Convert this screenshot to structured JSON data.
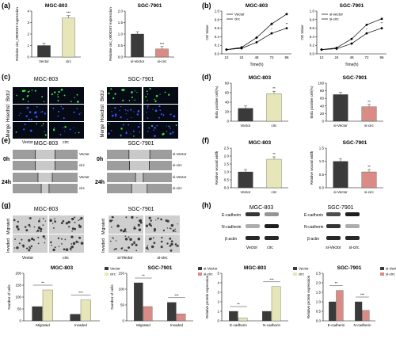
{
  "panels": {
    "a": {
      "letter": "(a)"
    },
    "b": {
      "letter": "(b)"
    },
    "c": {
      "letter": "(c)"
    },
    "d": {
      "letter": "(d)"
    },
    "e": {
      "letter": "(e)"
    },
    "f": {
      "letter": "(f)"
    },
    "g": {
      "letter": "(g)"
    },
    "h": {
      "letter": "(h)"
    }
  },
  "labels": {
    "mgc": "MGC-803",
    "sgc": "SGC-7901",
    "vector": "Vector",
    "circ": "circ",
    "si_vector": "si-Vector",
    "si_vector_lc": "si-vector",
    "si_circ": "si-circ",
    "brdu": "BrdU",
    "hoechst": "Hoechst",
    "merge": "Merge",
    "h0": "0h",
    "h24": "24h",
    "migrated": "Migrated",
    "invaded": "Invaded",
    "e_cadherin": "E-cadherin",
    "n_cadherin": "N-cadherin",
    "b_actin": "β-actin",
    "time_h": "Time(h)",
    "od": "OD Value",
    "rel_expr_a_left": "Relative circ_0000267  expression",
    "rel_expr_a_right": "Relative circ_0000267  expression",
    "brdu_positive": "Brdu positive cell(%)",
    "rel_wound": "Relative wound width",
    "num_cells": "Number of cells",
    "rel_protein": "Relative protein expression",
    "sig2": "**",
    "sig3": "***"
  },
  "chart_data": [
    {
      "panel": "a",
      "title": "MGC-803",
      "type": "bar",
      "categories": [
        "Vector",
        "circ"
      ],
      "values": [
        1.0,
        3.4
      ],
      "ylim": [
        0,
        4
      ],
      "yticks": [
        0,
        1,
        2,
        3,
        4
      ],
      "colors": [
        "#3a3a3a",
        "#e7e6b8"
      ]
    },
    {
      "panel": "a",
      "title": "SGC-7901",
      "type": "bar",
      "categories": [
        "si-Vector",
        "si-circ"
      ],
      "values": [
        1.0,
        0.35
      ],
      "ylim": [
        0,
        2
      ],
      "yticks": [
        0.0,
        0.5,
        1.0,
        1.5,
        2.0
      ],
      "colors": [
        "#3a3a3a",
        "#d98c85"
      ]
    },
    {
      "panel": "b",
      "title": "MGC-803",
      "type": "line",
      "x": [
        12,
        24,
        48,
        72,
        96
      ],
      "ylim": [
        0,
        1.0
      ],
      "yticks": [
        0.0,
        0.2,
        0.4,
        0.6,
        0.8,
        1.0
      ],
      "series": [
        {
          "name": "Vector",
          "values": [
            0.1,
            0.13,
            0.27,
            0.48,
            0.6
          ]
        },
        {
          "name": "circ",
          "values": [
            0.1,
            0.15,
            0.38,
            0.7,
            0.93
          ]
        }
      ]
    },
    {
      "panel": "b",
      "title": "SGC-7901",
      "type": "line",
      "x": [
        12,
        24,
        48,
        72,
        96
      ],
      "ylim": [
        0,
        1.0
      ],
      "yticks": [
        0.0,
        0.2,
        0.4,
        0.6,
        0.8,
        1.0
      ],
      "series": [
        {
          "name": "si-vector",
          "values": [
            0.1,
            0.14,
            0.35,
            0.68,
            0.82
          ]
        },
        {
          "name": "si-circ",
          "values": [
            0.1,
            0.12,
            0.24,
            0.48,
            0.6
          ]
        }
      ]
    },
    {
      "panel": "d",
      "title": "MGC-803",
      "type": "bar",
      "categories": [
        "Vector",
        "circ"
      ],
      "values": [
        27,
        58
      ],
      "ylim": [
        0,
        80
      ],
      "yticks": [
        0,
        20,
        40,
        60,
        80
      ],
      "colors": [
        "#3a3a3a",
        "#e7e6b8"
      ]
    },
    {
      "panel": "d",
      "title": "SGC-7901",
      "type": "bar",
      "categories": [
        "si-Vector",
        "si-circ"
      ],
      "values": [
        70,
        38
      ],
      "ylim": [
        0,
        100
      ],
      "yticks": [
        0,
        20,
        40,
        60,
        80,
        100
      ],
      "colors": [
        "#3a3a3a",
        "#d98c85"
      ]
    },
    {
      "panel": "f",
      "title": "MGC-803",
      "type": "bar",
      "categories": [
        "Vector",
        "circ"
      ],
      "values": [
        1.0,
        1.8
      ],
      "ylim": [
        0,
        2.5
      ],
      "yticks": [
        0.0,
        0.5,
        1.0,
        1.5,
        2.0,
        2.5
      ],
      "colors": [
        "#3a3a3a",
        "#e7e6b8"
      ]
    },
    {
      "panel": "f",
      "title": "SGC-7901",
      "type": "bar",
      "categories": [
        "si-Vector",
        "si-circ"
      ],
      "values": [
        1.0,
        0.6
      ],
      "ylim": [
        0,
        1.5
      ],
      "yticks": [
        0.0,
        0.5,
        1.0,
        1.5
      ],
      "colors": [
        "#3a3a3a",
        "#d98c85"
      ]
    },
    {
      "panel": "g",
      "title": "MGC-803",
      "type": "bar",
      "categories": [
        "Migrated",
        "Invaded"
      ],
      "ylim": [
        0,
        200
      ],
      "yticks": [
        0,
        50,
        100,
        150,
        200
      ],
      "series": [
        {
          "name": "Vector",
          "values": [
            60,
            28
          ]
        },
        {
          "name": "circ",
          "values": [
            130,
            88
          ]
        }
      ]
    },
    {
      "panel": "g",
      "title": "SGC-7901",
      "type": "bar",
      "categories": [
        "Migrated",
        "Invaded"
      ],
      "ylim": [
        0,
        150
      ],
      "yticks": [
        0,
        50,
        100,
        150
      ],
      "series": [
        {
          "name": "si-Vector",
          "values": [
            120,
            58
          ]
        },
        {
          "name": "si-circ",
          "values": [
            45,
            22
          ]
        }
      ]
    },
    {
      "panel": "h",
      "title": "MGC-803",
      "type": "bar",
      "categories": [
        "E-cadherin",
        "N-cadherin"
      ],
      "ylim": [
        0,
        5
      ],
      "yticks": [
        0,
        1,
        2,
        3,
        4,
        5
      ],
      "series": [
        {
          "name": "Vector",
          "values": [
            1.0,
            1.0
          ]
        },
        {
          "name": "circ",
          "values": [
            0.3,
            3.6
          ]
        }
      ]
    },
    {
      "panel": "h",
      "title": "SGC-7901",
      "type": "bar",
      "categories": [
        "E-cadherin",
        "N-cadherin"
      ],
      "ylim": [
        0,
        2.5
      ],
      "yticks": [
        0.0,
        0.5,
        1.0,
        1.5,
        2.0,
        2.5
      ],
      "series": [
        {
          "name": "si-Vector",
          "values": [
            1.0,
            1.0
          ]
        },
        {
          "name": "si-circ",
          "values": [
            1.6,
            0.55
          ]
        }
      ]
    }
  ]
}
